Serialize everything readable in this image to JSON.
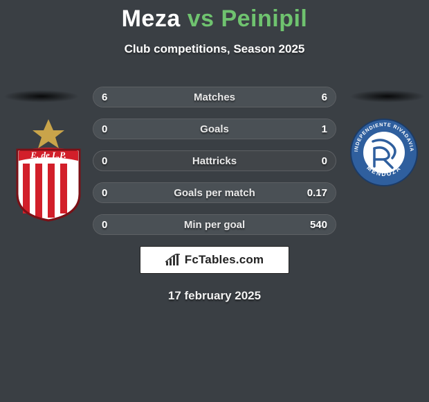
{
  "header": {
    "player1": "Meza",
    "vs": "vs",
    "player2": "Peinipil",
    "subtitle": "Club competitions, Season 2025",
    "title_fontsize": 34,
    "subtitle_fontsize": 17,
    "player1_color": "#ffffff",
    "vs_color": "#6fc36f",
    "player2_color": "#6fc36f"
  },
  "stats": {
    "rows": [
      {
        "label": "Matches",
        "left": "6",
        "right": "6",
        "fill_left_pct": 50,
        "fill_right_pct": 50
      },
      {
        "label": "Goals",
        "left": "0",
        "right": "1",
        "fill_left_pct": 0,
        "fill_right_pct": 100
      },
      {
        "label": "Hattricks",
        "left": "0",
        "right": "0",
        "fill_left_pct": 0,
        "fill_right_pct": 0
      },
      {
        "label": "Goals per match",
        "left": "0",
        "right": "0.17",
        "fill_left_pct": 0,
        "fill_right_pct": 100
      },
      {
        "label": "Min per goal",
        "left": "0",
        "right": "540",
        "fill_left_pct": 0,
        "fill_right_pct": 100
      }
    ],
    "row_bg": "#414549",
    "fill_color": "#4a5055",
    "border_color": "rgba(255,255,255,0.15)",
    "label_fontsize": 15
  },
  "crests": {
    "left": {
      "name": "estudiantes-crest",
      "banner_text": "E. de L.P.",
      "banner_bg": "#d21f2a",
      "stripe_color": "#d21f2a",
      "shield_bg": "#ffffff",
      "star_color": "#c9a44a"
    },
    "right": {
      "name": "independiente-rivadavia-crest",
      "ring_text_top": "INDEPENDIENTE RIVADAVIA",
      "ring_text_bottom": "MENDOZA",
      "ring_bg": "#2f5f9e",
      "ring_text_color": "#ffffff",
      "inner_bg": "#ffffff",
      "monogram_color": "#2f5f9e"
    }
  },
  "footer": {
    "brand": "FcTables.com",
    "date": "17 february 2025",
    "badge_bg": "#ffffff",
    "badge_text_color": "#222222",
    "icon_color": "#333333"
  },
  "background_color": "#3a3f44"
}
